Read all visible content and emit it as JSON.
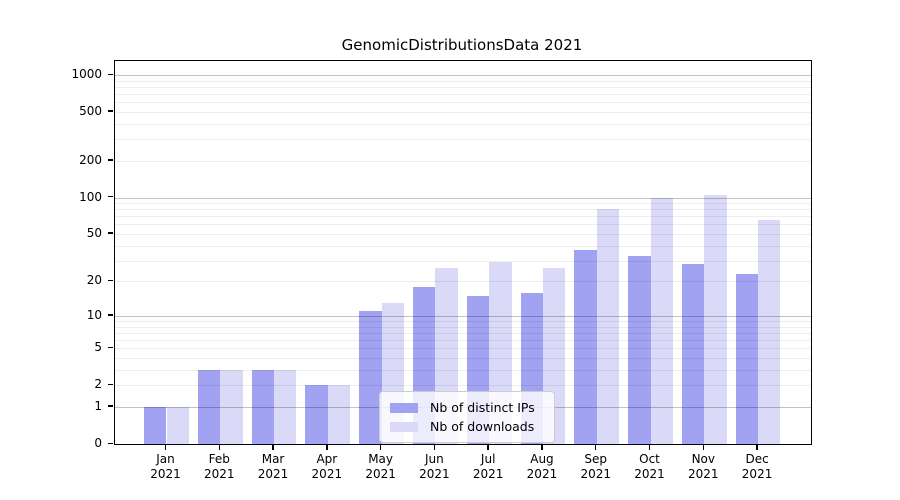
{
  "chart_data": {
    "type": "bar",
    "title": "GenomicDistributionsData 2021",
    "categories": [
      "Jan 2021",
      "Feb 2021",
      "Mar 2021",
      "Apr 2021",
      "May 2021",
      "Jun 2021",
      "Jul 2021",
      "Aug 2021",
      "Sep 2021",
      "Oct 2021",
      "Nov 2021",
      "Dec 2021"
    ],
    "series": [
      {
        "name": "Nb of distinct IPs",
        "color": "#a2a2f2",
        "values": [
          1,
          3,
          3,
          2,
          11,
          18,
          15,
          16,
          37,
          33,
          28,
          23
        ]
      },
      {
        "name": "Nb of downloads",
        "color": "#dadaf8",
        "values": [
          1,
          3,
          3,
          2,
          13,
          26,
          29,
          26,
          80,
          100,
          105,
          65
        ]
      }
    ],
    "y_axis": {
      "scale": "log10(1+y)",
      "tick_values": [
        0,
        1,
        2,
        5,
        10,
        20,
        50,
        100,
        200,
        500,
        1000
      ],
      "major_grid_values": [
        1,
        10,
        100,
        1000
      ],
      "ylim": [
        0,
        1300
      ]
    },
    "x_axis": {
      "tick_label_lines": 2
    },
    "grid": "on",
    "legend_position": "lower-center-inside"
  }
}
